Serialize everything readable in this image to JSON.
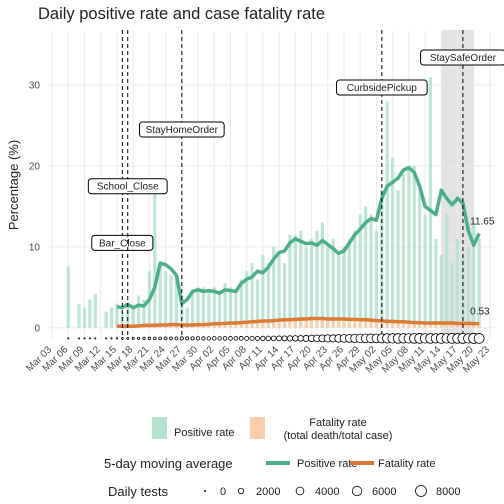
{
  "chart_data": {
    "type": "bar_line",
    "title": "Daily positive rate and case fatality rate",
    "y_label": "Percentage (%)",
    "categories": [
      "Mar 03",
      null,
      null,
      "Mar 06",
      null,
      null,
      "Mar 09",
      null,
      null,
      "Mar 12",
      null,
      null,
      "Mar 15",
      null,
      null,
      "Mar 18",
      null,
      null,
      "Mar 21",
      null,
      null,
      "Mar 24",
      null,
      null,
      "Mar 27",
      null,
      null,
      "Mar 30",
      null,
      null,
      "Apr 02",
      null,
      null,
      "Apr 05",
      null,
      null,
      "Apr 08",
      null,
      null,
      "Apr 11",
      null,
      null,
      "Apr 14",
      null,
      null,
      "Apr 17",
      null,
      null,
      "Apr 20",
      null,
      null,
      "Apr 23",
      null,
      null,
      "Apr 26",
      null,
      null,
      "Apr 29",
      null,
      null,
      "May 02",
      null,
      null,
      "May 05",
      null,
      null,
      "May 08",
      null,
      null,
      "May 11",
      null,
      null,
      "May 14",
      null,
      null,
      "May 17",
      null,
      null,
      "May 20",
      null,
      null,
      "May 23"
    ],
    "ylim": [
      -1.5,
      36.8
    ],
    "yticks": [
      0,
      10,
      20,
      30
    ],
    "grid": true,
    "series": [
      {
        "name": "Positive rate",
        "color": "#b3e2cd",
        "values": [
          null,
          null,
          null,
          7.6,
          null,
          3,
          2.5,
          3.5,
          4.2,
          null,
          2,
          2.5,
          3,
          2,
          3,
          2.5,
          4,
          3.5,
          7,
          17,
          8,
          7,
          6.5,
          6,
          4,
          2.5,
          4.5,
          5,
          5,
          4.5,
          5,
          4.5,
          5.5,
          5,
          4.5,
          6,
          7,
          8,
          6,
          9,
          8,
          10,
          9,
          8,
          11.5,
          11.5,
          12,
          10,
          11,
          12,
          13,
          10,
          11,
          9,
          10,
          11,
          12,
          14,
          15,
          14,
          12,
          17,
          28,
          21,
          17,
          19,
          20,
          20,
          17,
          14,
          31,
          11,
          9,
          14,
          8,
          11,
          9,
          10,
          13,
          11,
          null,
          null
        ]
      },
      {
        "name": "Fatality rate\n(total death/total case)",
        "color": "#fdcdac",
        "values": [
          null,
          null,
          null,
          0,
          null,
          0,
          0,
          0,
          0,
          null,
          0,
          0,
          0,
          0,
          0,
          0,
          0,
          0.2,
          0.3,
          0.4,
          0.3,
          0.4,
          0.5,
          0.3,
          0.2,
          0.3,
          0.4,
          0.5,
          0.4,
          0.5,
          0.6,
          0.5,
          0.5,
          0.7,
          0.6,
          0.8,
          0.7,
          0.9,
          0.8,
          1,
          0.8,
          0.9,
          1,
          1.1,
          0.9,
          1,
          1.2,
          1,
          1.3,
          1.1,
          1.2,
          1,
          1.3,
          1.1,
          1,
          1.2,
          1.1,
          0.9,
          1,
          1.2,
          0.9,
          1,
          0.8,
          0.7,
          0.9,
          0.8,
          0.6,
          0.7,
          0.5,
          0.6,
          0.7,
          0.5,
          0.6,
          0.8,
          0.5,
          0.6,
          0.7,
          0.4,
          0.5,
          0.5,
          null,
          null
        ]
      }
    ],
    "moving_average": {
      "title": "5-day moving average",
      "series": [
        {
          "name": "Positive rate",
          "color": "#4daf8a",
          "values": [
            null,
            null,
            null,
            null,
            null,
            null,
            null,
            null,
            null,
            null,
            null,
            null,
            2.6,
            2.5,
            2.9,
            2.5,
            2.8,
            2.7,
            3.5,
            5,
            8,
            7.8,
            7.3,
            6.5,
            3,
            3.5,
            4.5,
            4.7,
            4.5,
            4.6,
            4.5,
            4.3,
            4.7,
            4.6,
            4.5,
            5.5,
            6,
            6.3,
            7,
            6.8,
            7.5,
            8.5,
            9.3,
            9.5,
            10.5,
            11,
            10.7,
            10.4,
            10.5,
            10.2,
            10.8,
            10.3,
            9.8,
            9.2,
            9.5,
            10.5,
            11.5,
            12.2,
            13,
            13.5,
            13.3,
            16,
            17.5,
            18,
            18.5,
            19.5,
            19.8,
            19.2,
            17.5,
            15,
            14.5,
            14,
            17,
            16,
            15.2,
            16,
            15.4,
            12,
            10.2,
            11.65,
            null,
            null
          ]
        },
        {
          "name": "Fatality rate",
          "color": "#dc7b36",
          "values": [
            null,
            null,
            null,
            null,
            null,
            null,
            null,
            null,
            null,
            null,
            null,
            null,
            0.2,
            0.2,
            0.2,
            0.2,
            0.25,
            0.3,
            0.3,
            0.3,
            0.35,
            0.35,
            0.4,
            0.4,
            0.35,
            0.35,
            0.35,
            0.4,
            0.4,
            0.45,
            0.5,
            0.5,
            0.55,
            0.6,
            0.6,
            0.65,
            0.7,
            0.75,
            0.8,
            0.85,
            0.85,
            0.9,
            0.95,
            1,
            1,
            1.05,
            1.1,
            1.1,
            1.15,
            1.15,
            1.15,
            1.1,
            1.1,
            1.1,
            1.1,
            1.05,
            1.05,
            1,
            1,
            0.95,
            0.9,
            0.85,
            0.8,
            0.8,
            0.75,
            0.75,
            0.7,
            0.65,
            0.65,
            0.6,
            0.6,
            0.6,
            0.6,
            0.6,
            0.6,
            0.55,
            0.55,
            0.55,
            0.53,
            0.53,
            null,
            null
          ]
        }
      ]
    },
    "tests": {
      "title": "Daily tests",
      "values": [
        null,
        null,
        null,
        20,
        null,
        30,
        40,
        60,
        80,
        null,
        100,
        120,
        150,
        200,
        250,
        300,
        350,
        400,
        450,
        500,
        500,
        600,
        550,
        600,
        700,
        650,
        700,
        800,
        750,
        800,
        900,
        850,
        900,
        1000,
        950,
        1000,
        1100,
        1200,
        1100,
        1300,
        1400,
        1500,
        1600,
        1700,
        1900,
        2000,
        2200,
        2500,
        2800,
        3000,
        3200,
        3500,
        3400,
        3800,
        4000,
        4200,
        4500,
        4800,
        5000,
        5200,
        5000,
        5500,
        5800,
        6000,
        6200,
        5800,
        6000,
        6300,
        6500,
        6000,
        6200,
        5800,
        6500,
        6000,
        6400,
        6200,
        6600,
        6000,
        6800,
        6500,
        null,
        null
      ],
      "legend_values": [
        0,
        2000,
        4000,
        6000,
        8000
      ],
      "max": 8000
    },
    "events": [
      {
        "label": "Bar_Close",
        "at": 13
      },
      {
        "label": "School_Close",
        "at": 14
      },
      {
        "label": "StayHomeOrder",
        "at": 24
      },
      {
        "label": "CurbsidePickup",
        "at": 61
      },
      {
        "label": "StaySafeOrder",
        "at": 76
      }
    ],
    "shade": {
      "from": 72,
      "to": 78
    }
  }
}
